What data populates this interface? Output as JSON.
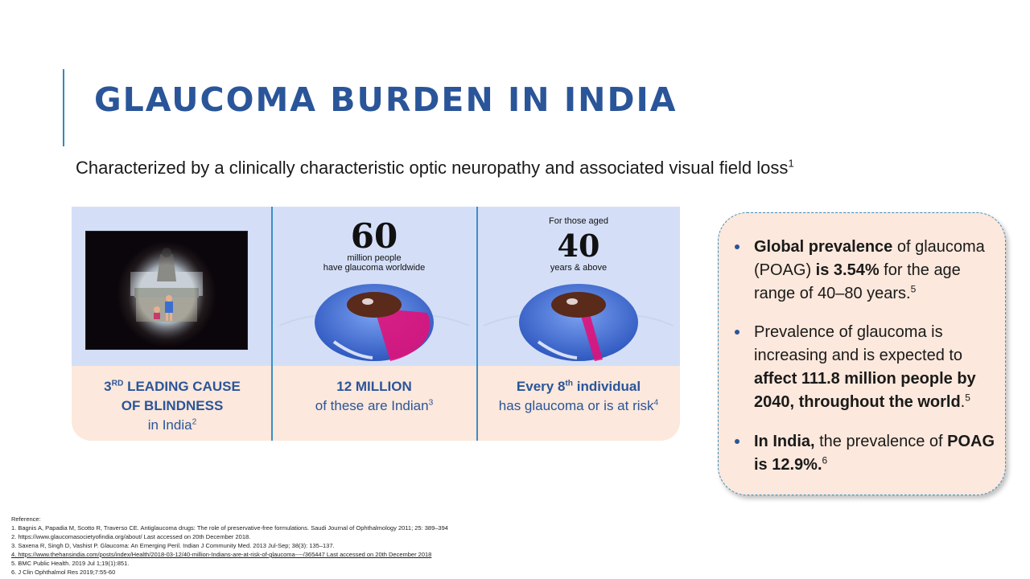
{
  "title": "GLAUCOMA BURDEN IN INDIA",
  "subtitle": {
    "text": "Characterized by a clinically characteristic optic neuropathy and associated visual field loss",
    "ref": "1"
  },
  "panel": {
    "col1": {
      "line1_pre": "3",
      "line1_sup": "RD",
      "line1_post": " LEADING CAUSE",
      "line2": "OF BLINDNESS",
      "line3": "in India",
      "ref": "2"
    },
    "col2": {
      "number": "60",
      "line_a": "million people",
      "line_b": "have glaucoma worldwide",
      "caption_bold": "12 MILLION",
      "caption": "of these are Indian",
      "ref": "3"
    },
    "col3": {
      "top_line": "For those aged",
      "number": "40",
      "sub_line": "years & above",
      "caption_pre": "Every 8",
      "caption_sup": "th",
      "caption_post": " individual",
      "caption": "has glaucoma or is at risk",
      "ref": "4"
    }
  },
  "bullets": [
    {
      "b1": "Global prevalence",
      "t1": " of glaucoma (POAG) ",
      "b2": "is 3.54%",
      "t2": " for the age range of 40–80 years.",
      "ref": "5"
    },
    {
      "t1": "Prevalence of glaucoma is increasing and is expected to ",
      "b1": "affect 111.8 million people by 2040, throughout the world",
      "t2": ".",
      "ref": "5"
    },
    {
      "b1": "In India,",
      "t1": " the prevalence of ",
      "b2": "POAG is 12.9%.",
      "ref": "6"
    }
  ],
  "references": {
    "heading": "Reference:",
    "items": [
      "1.  Bagnis A, Papadia M, Scotto R, Traverso CE. Antiglaucoma drugs: The role of preservative-free formulations. Saudi Journal of Ophthalmology 2011; 25: 389–394",
      "2.  https://www.glaucomasocietyofindia.org/about/ Last accessed on 20th December 2018.",
      "3.  Saxena R, Singh D, Vashist P. Glaucoma: An Emerging Peril. Indian J Community Med. 2013 Jul-Sep; 38(3): 135–137.",
      "4.  https://www.thehansindia.com/posts/index/Health/2018-03-12/40-million-Indians-are-at-risk-of-glaucoma----/365447 Last accessed on 20th December 2018",
      "5.  BMC Public Health. 2019 Jul 1;19(1):851.",
      "6.  J Clin Ophthalmol Res 2019;7:55-60"
    ]
  },
  "colors": {
    "title": "#2a5599",
    "accent_line": "#2e8bc0",
    "panel_top": "#d4dff7",
    "panel_bottom": "#fce8dc",
    "eye_blue": "#4a78d8",
    "eye_highlight": "#e0127a"
  }
}
